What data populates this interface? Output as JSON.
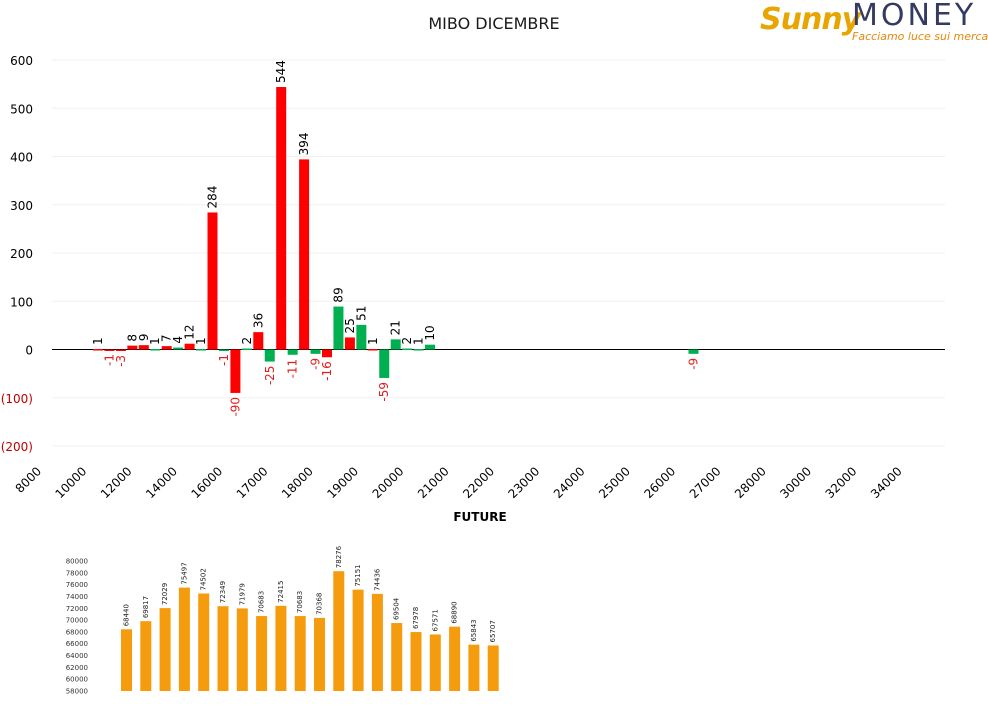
{
  "logo": {
    "sunny": "Sunny",
    "money": "MONEY",
    "tagline": "Facciamo luce sui mercati",
    "colors": {
      "sunny": "#e8a400",
      "money": "#333b63",
      "tagline": "#e8870a"
    }
  },
  "chart_data": [
    {
      "type": "bar",
      "title": "MIBO DICEMBRE",
      "xlabel": "",
      "ylabel": "",
      "ylim": [
        -200,
        600
      ],
      "y_ticks": [
        {
          "value": 600,
          "label": "600"
        },
        {
          "value": 500,
          "label": "500"
        },
        {
          "value": 400,
          "label": "400"
        },
        {
          "value": 300,
          "label": "300"
        },
        {
          "value": 200,
          "label": "200"
        },
        {
          "value": 100,
          "label": "100"
        },
        {
          "value": 0,
          "label": "0"
        },
        {
          "value": -100,
          "label": "(100)"
        },
        {
          "value": -200,
          "label": "(200)"
        }
      ],
      "categories": [
        "8000",
        "10000",
        "12000",
        "14000",
        "16000",
        "17000",
        "18000",
        "19000",
        "20000",
        "21000",
        "22000",
        "23000",
        "24000",
        "25000",
        "26000",
        "27000",
        "28000",
        "30000",
        "32000",
        "34000"
      ],
      "grid": true,
      "colors": {
        "red": "#ff0000",
        "green": "#00b050",
        "negative_label": "#e02020",
        "positive_label": "#000000"
      },
      "bars": [
        {
          "label": "1",
          "value": 1,
          "color": "red"
        },
        {
          "label": "-1",
          "value": -1,
          "color": "red"
        },
        {
          "label": "-3",
          "value": -3,
          "color": "red"
        },
        {
          "label": "8",
          "value": 8,
          "color": "red"
        },
        {
          "label": "9",
          "value": 9,
          "color": "red"
        },
        {
          "label": "1",
          "value": 1,
          "color": "green"
        },
        {
          "label": "7",
          "value": 7,
          "color": "red"
        },
        {
          "label": "4",
          "value": 4,
          "color": "green"
        },
        {
          "label": "12",
          "value": 12,
          "color": "red"
        },
        {
          "label": "1",
          "value": 1,
          "color": "green"
        },
        {
          "label": "284",
          "value": 284,
          "color": "red"
        },
        {
          "label": "-1",
          "value": -1,
          "color": "green"
        },
        {
          "label": "-90",
          "value": -90,
          "color": "red"
        },
        {
          "label": "2",
          "value": 2,
          "color": "green"
        },
        {
          "label": "36",
          "value": 36,
          "color": "red"
        },
        {
          "label": "-25",
          "value": -25,
          "color": "green"
        },
        {
          "label": "544",
          "value": 544,
          "color": "red"
        },
        {
          "label": "-11",
          "value": -11,
          "color": "green"
        },
        {
          "label": "394",
          "value": 394,
          "color": "red"
        },
        {
          "label": "-9",
          "value": -9,
          "color": "green"
        },
        {
          "label": "-16",
          "value": -16,
          "color": "red"
        },
        {
          "label": "89",
          "value": 89,
          "color": "green"
        },
        {
          "label": "25",
          "value": 25,
          "color": "red"
        },
        {
          "label": "51",
          "value": 51,
          "color": "green"
        },
        {
          "label": "1",
          "value": 1,
          "color": "red"
        },
        {
          "label": "-59",
          "value": -59,
          "color": "green"
        },
        {
          "label": "21",
          "value": 21,
          "color": "green"
        },
        {
          "label": "2",
          "value": 2,
          "color": "green"
        },
        {
          "label": "1",
          "value": 1,
          "color": "green"
        },
        {
          "label": "10",
          "value": 10,
          "color": "green"
        },
        {
          "label": "-9",
          "value": -9,
          "color": "green"
        }
      ]
    },
    {
      "type": "bar",
      "title": "FUTURE",
      "xlabel": "",
      "ylabel": "",
      "ylim": [
        58000,
        80000
      ],
      "y_ticks": [
        "80000",
        "78000",
        "76000",
        "74000",
        "72000",
        "70000",
        "68000",
        "66000",
        "64000",
        "62000",
        "60000",
        "58000"
      ],
      "color": "#f59c0e",
      "values": [
        68440,
        69817,
        72029,
        75497,
        74502,
        72349,
        71979,
        70683,
        72415,
        70683,
        70368,
        78276,
        75151,
        74436,
        69504,
        67978,
        67571,
        68890,
        65843,
        65707
      ],
      "labels": [
        "68440",
        "69817",
        "72029",
        "75497",
        "74502",
        "72349",
        "71979",
        "70683",
        "72415",
        "70683",
        "70368",
        "78276",
        "75151",
        "74436",
        "69504",
        "67978",
        "67571",
        "68890",
        "65843",
        "65707"
      ]
    }
  ]
}
